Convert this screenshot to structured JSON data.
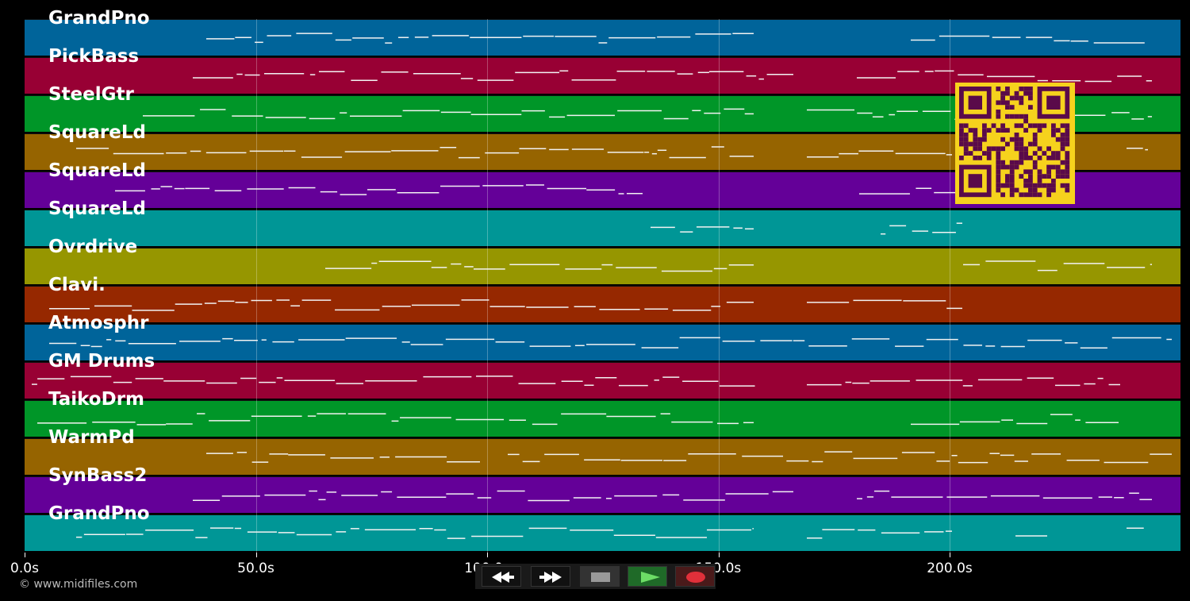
{
  "tracks": [
    {
      "name": "GrandPno",
      "color": "#00649a"
    },
    {
      "name": "PickBass",
      "color": "#980034"
    },
    {
      "name": "SteelGtr",
      "color": "#009628"
    },
    {
      "name": "SquareLd",
      "color": "#966400"
    },
    {
      "name": "SquareLd",
      "color": "#640098"
    },
    {
      "name": "SquareLd",
      "color": "#009696"
    },
    {
      "name": "Ovrdrive",
      "color": "#969600"
    },
    {
      "name": "Clavi.",
      "color": "#962800"
    },
    {
      "name": "Atmosphr",
      "color": "#00649a"
    },
    {
      "name": "GM Drums",
      "color": "#980034"
    },
    {
      "name": "TaikoDrm",
      "color": "#009628"
    },
    {
      "name": "WarmPd",
      "color": "#966400"
    },
    {
      "name": "SynBass2",
      "color": "#640098"
    },
    {
      "name": "GrandPno",
      "color": "#009696"
    }
  ],
  "timeline": {
    "ticks": [
      "0.0s",
      "50.0s",
      "100.0s",
      "150.0s",
      "200.0s"
    ]
  },
  "transport": {
    "rewind_icon": "rewind-icon",
    "forward_icon": "fast-forward-icon",
    "stop_icon": "stop-icon",
    "play_icon": "play-icon",
    "record_icon": "record-icon"
  },
  "copyright": "© www.midifiles.com",
  "qr": {
    "label": "qr-code"
  }
}
